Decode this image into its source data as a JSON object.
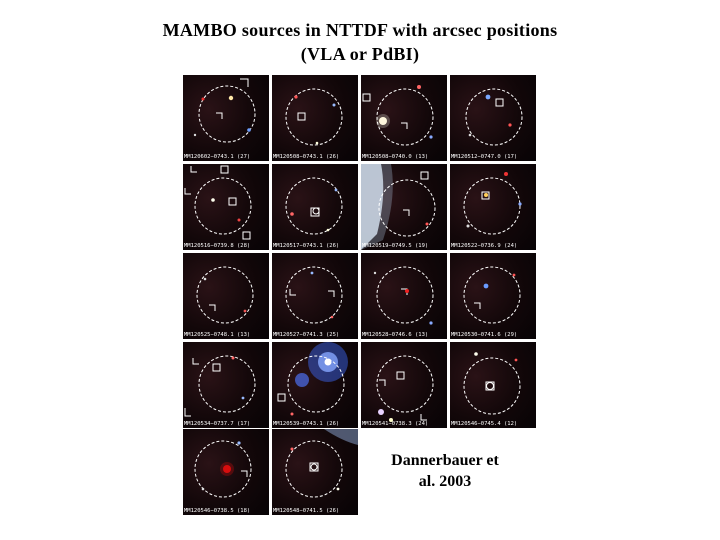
{
  "title": {
    "line1": "MAMBO sources in NTTDF with arcsec positions",
    "line2": "(VLA or PdBI)"
  },
  "credit": {
    "line1": "Dannerbauer et",
    "line2": "al. 2003"
  },
  "panels": [
    {
      "label": "MM120602−0743.1 (27)"
    },
    {
      "label": "MM120508−0743.1 (26)"
    },
    {
      "label": "MM120508−0740.0 (13)"
    },
    {
      "label": "MM120512−0747.0 (17)"
    },
    {
      "label": "MM120516−0739.8 (28)"
    },
    {
      "label": "MM120517−0743.1 (26)"
    },
    {
      "label": "MM120519−0749.5 (19)"
    },
    {
      "label": "MM120522−0736.9 (24)"
    },
    {
      "label": "MM120525−0748.1 (13)"
    },
    {
      "label": "MM120527−0741.3 (25)"
    },
    {
      "label": "MM120528−0746.6 (13)"
    },
    {
      "label": "MM120530−0741.6 (29)"
    },
    {
      "label": "MM120534−0737.7 (17)"
    },
    {
      "label": "MM120539−0743.1 (26)"
    },
    {
      "label": "MM120541−0738.3 (24)"
    },
    {
      "label": "MM120546−0745.4 (12)"
    },
    {
      "label": "MM120546−0738.5 (18)"
    },
    {
      "label": "MM120548−0741.5 (26)"
    }
  ]
}
